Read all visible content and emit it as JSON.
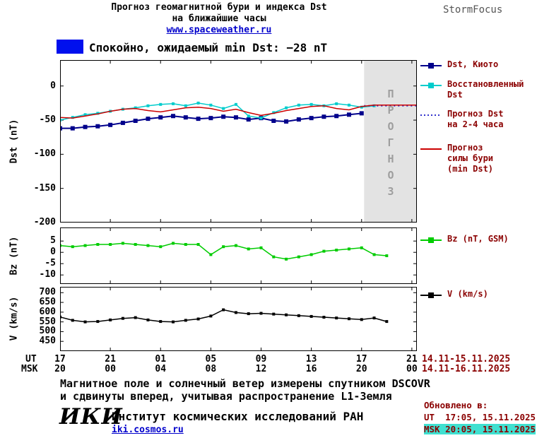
{
  "header": {
    "title_line1": "Прогноз геомагнитной бури и индекса Dst",
    "title_line2": "на ближайшие часы",
    "site_link": "www.spaceweather.ru",
    "brand": "StormFocus"
  },
  "status": {
    "swatch_color": "#0010EE",
    "text": "Спокойно, ожидаемый min Dst: −28 nT"
  },
  "forecast_watermark": "ПРОГНОЗ",
  "colors": {
    "legend_text": "#8B0000",
    "link": "#0000CC",
    "watermark": "#9E9E9E",
    "forecast_band": "#E3E3E3",
    "highlight": "#40E0D0",
    "brand_text": "#555555"
  },
  "legend": [
    {
      "lines": [
        "Dst, Киото"
      ],
      "color": "#00008B",
      "style": "line-square"
    },
    {
      "lines": [
        "Восстановленный",
        "Dst"
      ],
      "color": "#00CCCC",
      "style": "line-square"
    },
    {
      "lines": [
        "Прогноз Dst",
        "на 2-4 часа"
      ],
      "color": "#3333CC",
      "style": "dotted"
    },
    {
      "lines": [
        "Прогноз",
        "силы бури",
        "(min Dst)"
      ],
      "color": "#CC0000",
      "style": "line"
    },
    {
      "lines": [
        "Bz (nT, GSM)"
      ],
      "color": "#00CC00",
      "style": "line-square"
    },
    {
      "lines": [
        "V (km/s)"
      ],
      "color": "#000000",
      "style": "line-square"
    }
  ],
  "chart_data": [
    {
      "type": "line",
      "ylabel": "Dst (nT)",
      "ylim": [
        -200,
        38
      ],
      "yticks": [
        0,
        -50,
        -100,
        -150,
        -200
      ],
      "xlim": [
        0,
        28.4
      ],
      "forecast_region": {
        "x_start": 24.2
      },
      "series": [
        {
          "name": "Dst, Киото",
          "color": "#00008B",
          "marker": "square",
          "marker_size": 6,
          "width": 2,
          "x": [
            0,
            1,
            2,
            3,
            4,
            5,
            6,
            7,
            8,
            9,
            10,
            11,
            12,
            13,
            14,
            15,
            16,
            17,
            18,
            19,
            20,
            21,
            22,
            23,
            24
          ],
          "y": [
            -62,
            -62,
            -60,
            -59,
            -57,
            -54,
            -51,
            -48,
            -46,
            -44,
            -46,
            -48,
            -47,
            -45,
            -46,
            -49,
            -47,
            -51,
            -52,
            -49,
            -47,
            -45,
            -44,
            -42,
            -40
          ]
        },
        {
          "name": "Восстановленный Dst",
          "color": "#00CCCC",
          "marker": "square",
          "marker_size": 4,
          "width": 1.5,
          "x": [
            0,
            1,
            2,
            3,
            4,
            5,
            6,
            7,
            8,
            9,
            10,
            11,
            12,
            13,
            14,
            15,
            16,
            17,
            18,
            19,
            20,
            21,
            22,
            23,
            24,
            25
          ],
          "y": [
            -50,
            -46,
            -42,
            -40,
            -37,
            -34,
            -32,
            -29,
            -27,
            -26,
            -29,
            -25,
            -28,
            -33,
            -27,
            -44,
            -47,
            -39,
            -32,
            -28,
            -27,
            -29,
            -26,
            -28,
            -31,
            -29
          ]
        },
        {
          "name": "Прогноз Dst на 2-4 часа",
          "color": "#3333CC",
          "dash": "dotted",
          "width": 2,
          "x": [
            24.2,
            28.4
          ],
          "y": [
            -29,
            -29
          ]
        },
        {
          "name": "Прогноз силы бури (min Dst)",
          "color": "#CC0000",
          "width": 1.5,
          "x": [
            0,
            1,
            2,
            3,
            4,
            5,
            6,
            7,
            8,
            9,
            10,
            11,
            12,
            13,
            14,
            15,
            16,
            17,
            18,
            19,
            20,
            21,
            22,
            23,
            24,
            25,
            26.5,
            28.4
          ],
          "y": [
            -46,
            -47,
            -44,
            -41,
            -37,
            -34,
            -33,
            -36,
            -38,
            -35,
            -32,
            -31,
            -33,
            -37,
            -34,
            -39,
            -43,
            -40,
            -36,
            -33,
            -30,
            -29,
            -33,
            -35,
            -30,
            -28,
            -28,
            -28
          ]
        }
      ]
    },
    {
      "type": "line",
      "ylabel": "Bz (nT)",
      "ylim": [
        -14,
        11
      ],
      "yticks": [
        5,
        0,
        -5,
        -10
      ],
      "xlim": [
        0,
        28.4
      ],
      "series": [
        {
          "name": "Bz (nT, GSM)",
          "color": "#00CC00",
          "marker": "square",
          "marker_size": 4,
          "width": 1.5,
          "x": [
            0,
            1,
            2,
            3,
            4,
            5,
            6,
            7,
            8,
            9,
            10,
            11,
            12,
            13,
            14,
            15,
            16,
            17,
            18,
            19,
            20,
            21,
            22,
            23,
            24,
            25,
            26
          ],
          "y": [
            3,
            2.5,
            3,
            3.5,
            3.5,
            4,
            3.5,
            3,
            2.5,
            4,
            3.5,
            3.5,
            -1,
            2.5,
            3,
            1.5,
            2,
            -2,
            -3,
            -2,
            -1,
            0.5,
            1,
            1.5,
            2,
            -1,
            -1.5
          ]
        }
      ]
    },
    {
      "type": "line",
      "ylabel": "V (km/s)",
      "ylim": [
        400,
        730
      ],
      "yticks": [
        700,
        650,
        600,
        550,
        500,
        450
      ],
      "xlim": [
        0,
        28.4
      ],
      "series": [
        {
          "name": "V (km/s)",
          "color": "#000000",
          "marker": "square",
          "marker_size": 4,
          "width": 1.5,
          "x": [
            0,
            1,
            2,
            3,
            4,
            5,
            6,
            7,
            8,
            9,
            10,
            11,
            12,
            13,
            14,
            15,
            16,
            17,
            18,
            19,
            20,
            21,
            22,
            23,
            24,
            25,
            26
          ],
          "y": [
            575,
            558,
            550,
            552,
            560,
            568,
            572,
            560,
            552,
            550,
            558,
            565,
            580,
            612,
            598,
            592,
            594,
            590,
            586,
            582,
            578,
            574,
            570,
            566,
            562,
            570,
            552
          ]
        }
      ]
    }
  ],
  "xaxis": {
    "ut_label": "UT",
    "msk_label": "MSK",
    "tick_hours": [
      0,
      4,
      8,
      12,
      16,
      20,
      24,
      28
    ],
    "ut_ticks": [
      "17",
      "21",
      "01",
      "05",
      "09",
      "13",
      "17",
      "21"
    ],
    "msk_ticks": [
      "20",
      "00",
      "04",
      "08",
      "12",
      "16",
      "20",
      "00"
    ],
    "ut_dates": "14.11-15.11.2025",
    "msk_dates": "14.11-16.11.2025"
  },
  "footnote": {
    "line1": "Магнитное поле и солнечный ветер измерены спутником DSCOVR",
    "line2": "и сдвинуты вперед, учитывая распространение L1-Земля"
  },
  "footer": {
    "logo": "ИКИ",
    "institute": "Институт космических исследований РАН",
    "site": "iki.cosmos.ru"
  },
  "updated": {
    "label": "Обновлено в:",
    "ut": "UT  17:05, 15.11.2025",
    "msk": "MSK 20:05, 15.11.2025"
  }
}
